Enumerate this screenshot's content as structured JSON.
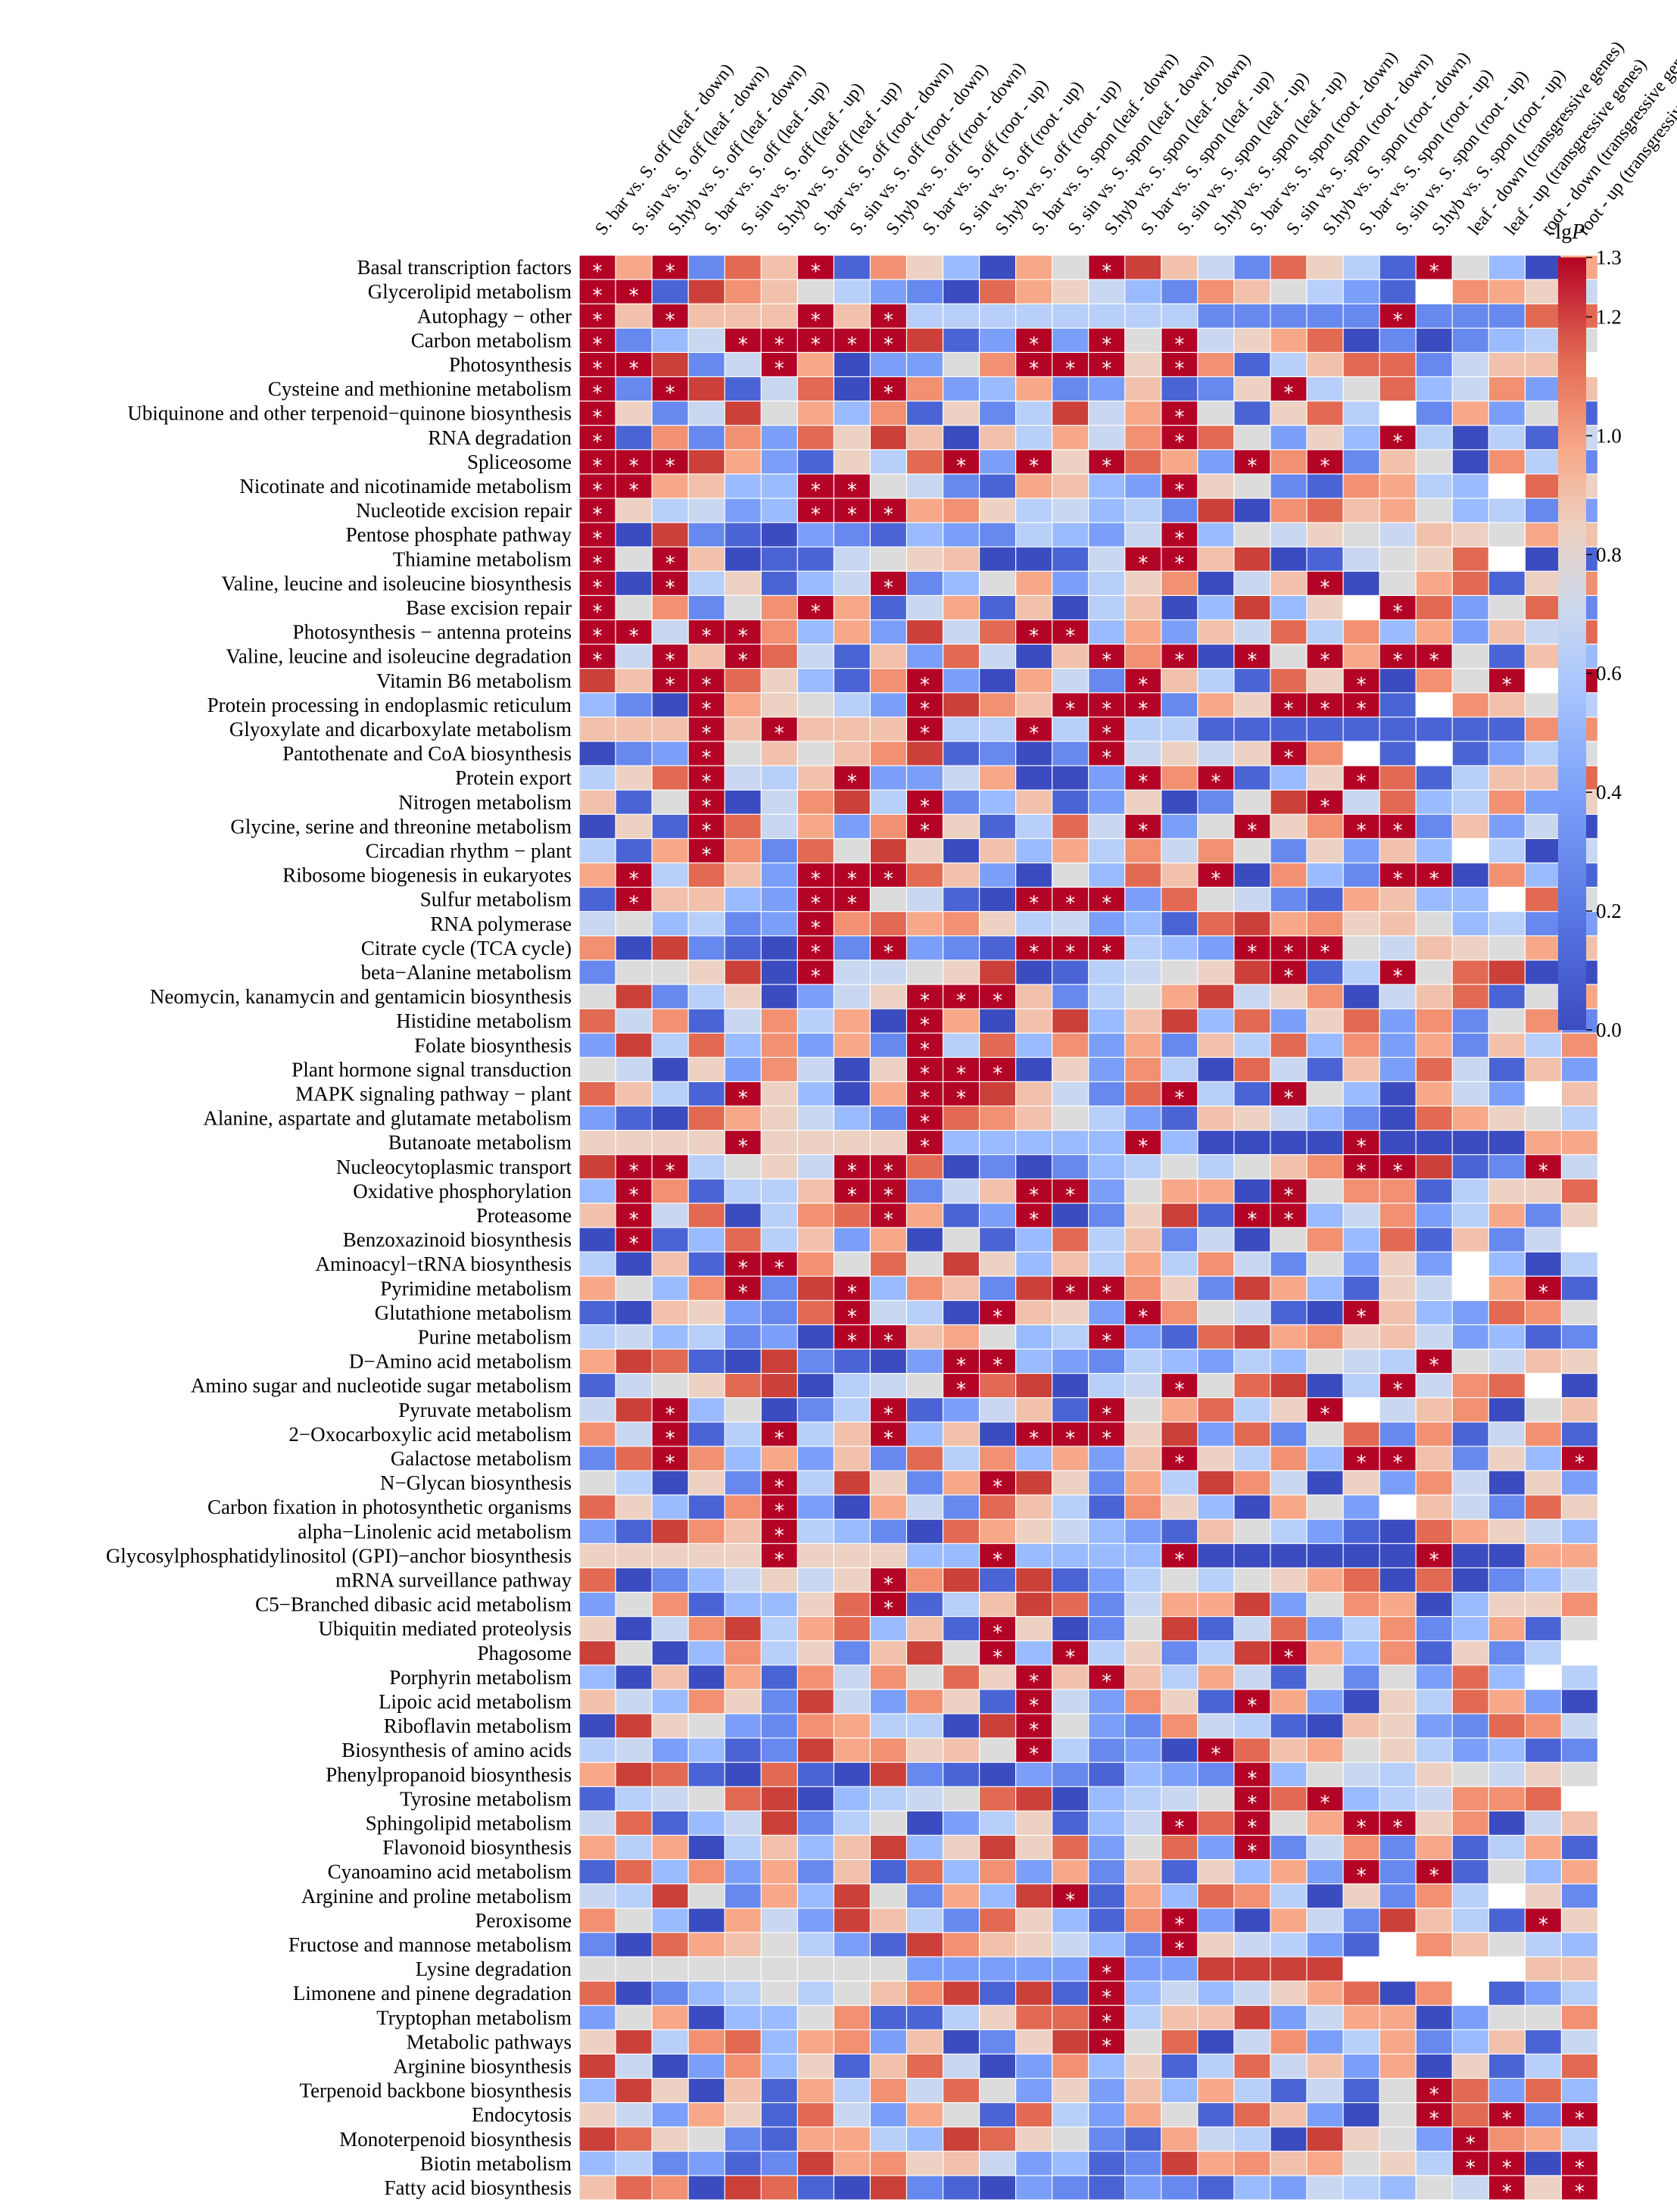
{
  "chart_data": {
    "type": "heatmap",
    "title": "",
    "colorbar": {
      "title_prefix": "-lg",
      "title_var": "P",
      "min": 0.0,
      "max": 1.3,
      "ticks": [
        "0.0",
        "0.2",
        "0.4",
        "0.6",
        "0.8",
        "1.0",
        "1.2",
        "1.3"
      ],
      "colormap": [
        "#3b4cc0",
        "#6788ee",
        "#9abbff",
        "#c9d7f0",
        "#edd1c2",
        "#f7a889",
        "#e26952",
        "#b40426"
      ]
    },
    "columns": [
      "S. bar vs. S. off (leaf - down)",
      "S. sin vs. S. off (leaf - down)",
      "S.hyb vs. S. off (leaf - down)",
      "S. bar vs. S. off (leaf - up)",
      "S. sin vs. S. off (leaf - up)",
      "S.hyb vs. S. off (leaf - up)",
      "S. bar vs. S. off (root - down)",
      "S. sin vs. S. off (root - down)",
      "S.hyb vs. S. off (root - down)",
      "S. bar vs. S. off (root - up)",
      "S. sin vs. S. off (root - up)",
      "S.hyb vs. S. off (root - up)",
      "S. bar vs. S. spon (leaf - down)",
      "S. sin vs. S. spon (leaf - down)",
      "S.hyb vs. S. spon (leaf - down)",
      "S. bar vs. S. spon (leaf - up)",
      "S. sin vs. S. spon (leaf - up)",
      "S.hyb vs. S. spon (leaf - up)",
      "S. bar vs. S. spon (root - down)",
      "S. sin vs. S. spon (root - down)",
      "S.hyb vs. S. spon (root - down)",
      "S. bar vs. S. spon (root - up)",
      "S. sin vs. S. spon (root - up)",
      "S.hyb vs. S. spon (root - up)",
      "leaf - down (transgressive genes)",
      "leaf - up (transgressive genes)",
      "root - down (transgressive genes)",
      "root - up (transgressive genes)"
    ],
    "rows": [
      {
        "name": "Basal transcription factors",
        "sig": [
          0,
          2,
          6,
          14,
          23
        ]
      },
      {
        "name": "Glycerolipid metabolism",
        "sig": [
          0,
          1
        ]
      },
      {
        "name": "Autophagy − other",
        "sig": [
          0,
          2,
          6,
          8,
          22
        ]
      },
      {
        "name": "Carbon metabolism",
        "sig": [
          0,
          4,
          5,
          6,
          7,
          8,
          12,
          14,
          16
        ]
      },
      {
        "name": "Photosynthesis",
        "sig": [
          0,
          1,
          5,
          12,
          13,
          14,
          16
        ]
      },
      {
        "name": "Cysteine and methionine metabolism",
        "sig": [
          0,
          2,
          8,
          19
        ]
      },
      {
        "name": "Ubiquinone and other terpenoid−quinone biosynthesis",
        "sig": [
          0,
          16
        ]
      },
      {
        "name": "RNA degradation",
        "sig": [
          0,
          16,
          22
        ]
      },
      {
        "name": "Spliceosome",
        "sig": [
          0,
          1,
          2,
          10,
          12,
          14,
          18,
          20
        ]
      },
      {
        "name": "Nicotinate and nicotinamide metabolism",
        "sig": [
          0,
          1,
          6,
          7,
          16
        ]
      },
      {
        "name": "Nucleotide excision repair",
        "sig": [
          0,
          6,
          7,
          8
        ]
      },
      {
        "name": "Pentose phosphate pathway",
        "sig": [
          0,
          16
        ]
      },
      {
        "name": "Thiamine metabolism",
        "sig": [
          0,
          2,
          15,
          16
        ]
      },
      {
        "name": "Valine, leucine and isoleucine biosynthesis",
        "sig": [
          0,
          2,
          8,
          20
        ]
      },
      {
        "name": "Base excision repair",
        "sig": [
          0,
          6,
          22
        ]
      },
      {
        "name": "Photosynthesis − antenna proteins",
        "sig": [
          0,
          1,
          3,
          4,
          12,
          13
        ]
      },
      {
        "name": "Valine, leucine and isoleucine degradation",
        "sig": [
          0,
          2,
          4,
          14,
          16,
          18,
          20,
          22,
          23
        ]
      },
      {
        "name": "Vitamin B6 metabolism",
        "sig": [
          2,
          3,
          9,
          15,
          21,
          25,
          27
        ]
      },
      {
        "name": "Protein processing in endoplasmic reticulum",
        "sig": [
          3,
          9,
          13,
          14,
          15,
          19,
          20,
          21
        ]
      },
      {
        "name": "Glyoxylate and dicarboxylate metabolism",
        "sig": [
          3,
          5,
          9,
          12,
          14
        ]
      },
      {
        "name": "Pantothenate and CoA biosynthesis",
        "sig": [
          3,
          14,
          19
        ]
      },
      {
        "name": "Protein export",
        "sig": [
          3,
          7,
          15,
          17,
          21
        ]
      },
      {
        "name": "Nitrogen metabolism",
        "sig": [
          3,
          9,
          20
        ]
      },
      {
        "name": "Glycine, serine and threonine metabolism",
        "sig": [
          3,
          9,
          15,
          18,
          21,
          22
        ]
      },
      {
        "name": "Circadian rhythm − plant",
        "sig": [
          3
        ]
      },
      {
        "name": "Ribosome biogenesis in eukaryotes",
        "sig": [
          1,
          6,
          7,
          8,
          17,
          22,
          23
        ]
      },
      {
        "name": "Sulfur metabolism",
        "sig": [
          1,
          6,
          7,
          12,
          13,
          14
        ]
      },
      {
        "name": "RNA polymerase",
        "sig": [
          6
        ]
      },
      {
        "name": "Citrate cycle (TCA cycle)",
        "sig": [
          6,
          8,
          12,
          13,
          14,
          18,
          19,
          20
        ]
      },
      {
        "name": "beta−Alanine metabolism",
        "sig": [
          6,
          19,
          22
        ]
      },
      {
        "name": "Neomycin, kanamycin and gentamicin biosynthesis",
        "sig": [
          9,
          10,
          11
        ]
      },
      {
        "name": "Histidine metabolism",
        "sig": [
          9
        ]
      },
      {
        "name": "Folate biosynthesis",
        "sig": [
          9
        ]
      },
      {
        "name": "Plant hormone signal transduction",
        "sig": [
          9,
          10,
          11
        ]
      },
      {
        "name": "MAPK signaling pathway − plant",
        "sig": [
          4,
          9,
          10,
          16,
          19
        ]
      },
      {
        "name": "Alanine, aspartate and glutamate metabolism",
        "sig": [
          9
        ]
      },
      {
        "name": "Butanoate metabolism",
        "sig": [
          4,
          9,
          15,
          21
        ]
      },
      {
        "name": "Nucleocytoplasmic transport",
        "sig": [
          1,
          2,
          7,
          8,
          21,
          22,
          26
        ]
      },
      {
        "name": "Oxidative phosphorylation",
        "sig": [
          1,
          7,
          8,
          12,
          13,
          19
        ]
      },
      {
        "name": "Proteasome",
        "sig": [
          1,
          8,
          12,
          18,
          19
        ]
      },
      {
        "name": "Benzoxazinoid biosynthesis",
        "sig": [
          1
        ]
      },
      {
        "name": "Aminoacyl−tRNA biosynthesis",
        "sig": [
          4,
          5
        ]
      },
      {
        "name": "Pyrimidine metabolism",
        "sig": [
          4,
          7,
          13,
          14,
          26
        ]
      },
      {
        "name": "Glutathione metabolism",
        "sig": [
          7,
          11,
          15,
          21
        ]
      },
      {
        "name": "Purine metabolism",
        "sig": [
          7,
          8,
          14
        ]
      },
      {
        "name": "D−Amino acid metabolism",
        "sig": [
          10,
          11,
          23
        ]
      },
      {
        "name": "Amino sugar and nucleotide sugar metabolism",
        "sig": [
          10,
          16,
          22
        ]
      },
      {
        "name": "Pyruvate metabolism",
        "sig": [
          2,
          8,
          14,
          20
        ]
      },
      {
        "name": "2−Oxocarboxylic acid metabolism",
        "sig": [
          2,
          5,
          8,
          12,
          13,
          14
        ]
      },
      {
        "name": "Galactose metabolism",
        "sig": [
          2,
          16,
          21,
          22,
          27
        ]
      },
      {
        "name": "N−Glycan biosynthesis",
        "sig": [
          5,
          11
        ]
      },
      {
        "name": "Carbon fixation in photosynthetic organisms",
        "sig": [
          5
        ]
      },
      {
        "name": "alpha−Linolenic acid metabolism",
        "sig": [
          5
        ]
      },
      {
        "name": "Glycosylphosphatidylinositol (GPI)−anchor biosynthesis",
        "sig": [
          5,
          11,
          16,
          23
        ]
      },
      {
        "name": "mRNA surveillance pathway",
        "sig": [
          8
        ]
      },
      {
        "name": "C5−Branched dibasic acid metabolism",
        "sig": [
          8
        ]
      },
      {
        "name": "Ubiquitin mediated proteolysis",
        "sig": [
          11
        ]
      },
      {
        "name": "Phagosome",
        "sig": [
          11,
          13,
          19
        ]
      },
      {
        "name": "Porphyrin metabolism",
        "sig": [
          12,
          14
        ]
      },
      {
        "name": "Lipoic acid metabolism",
        "sig": [
          12,
          18
        ]
      },
      {
        "name": "Riboflavin metabolism",
        "sig": [
          12
        ]
      },
      {
        "name": "Biosynthesis of amino acids",
        "sig": [
          12,
          17
        ]
      },
      {
        "name": "Phenylpropanoid biosynthesis",
        "sig": [
          18
        ]
      },
      {
        "name": "Tyrosine metabolism",
        "sig": [
          18,
          20
        ]
      },
      {
        "name": "Sphingolipid metabolism",
        "sig": [
          16,
          18,
          21,
          22
        ]
      },
      {
        "name": "Flavonoid biosynthesis",
        "sig": [
          18
        ]
      },
      {
        "name": "Cyanoamino acid metabolism",
        "sig": [
          21,
          23
        ]
      },
      {
        "name": "Arginine and proline metabolism",
        "sig": [
          13
        ]
      },
      {
        "name": "Peroxisome",
        "sig": [
          16,
          26
        ]
      },
      {
        "name": "Fructose and mannose metabolism",
        "sig": [
          16
        ]
      },
      {
        "name": "Lysine degradation",
        "sig": [
          14
        ]
      },
      {
        "name": "Limonene and pinene degradation",
        "sig": [
          14
        ]
      },
      {
        "name": "Tryptophan metabolism",
        "sig": [
          14
        ]
      },
      {
        "name": "Metabolic pathways",
        "sig": [
          14
        ]
      },
      {
        "name": "Arginine biosynthesis",
        "sig": []
      },
      {
        "name": "Terpenoid backbone biosynthesis",
        "sig": [
          23
        ]
      },
      {
        "name": "Endocytosis",
        "sig": [
          23,
          25,
          27
        ]
      },
      {
        "name": "Monoterpenoid biosynthesis",
        "sig": [
          24
        ]
      },
      {
        "name": "Biotin metabolism",
        "sig": [
          24,
          25,
          27
        ]
      },
      {
        "name": "Fatty acid biosynthesis",
        "sig": [
          25,
          27
        ]
      }
    ]
  }
}
